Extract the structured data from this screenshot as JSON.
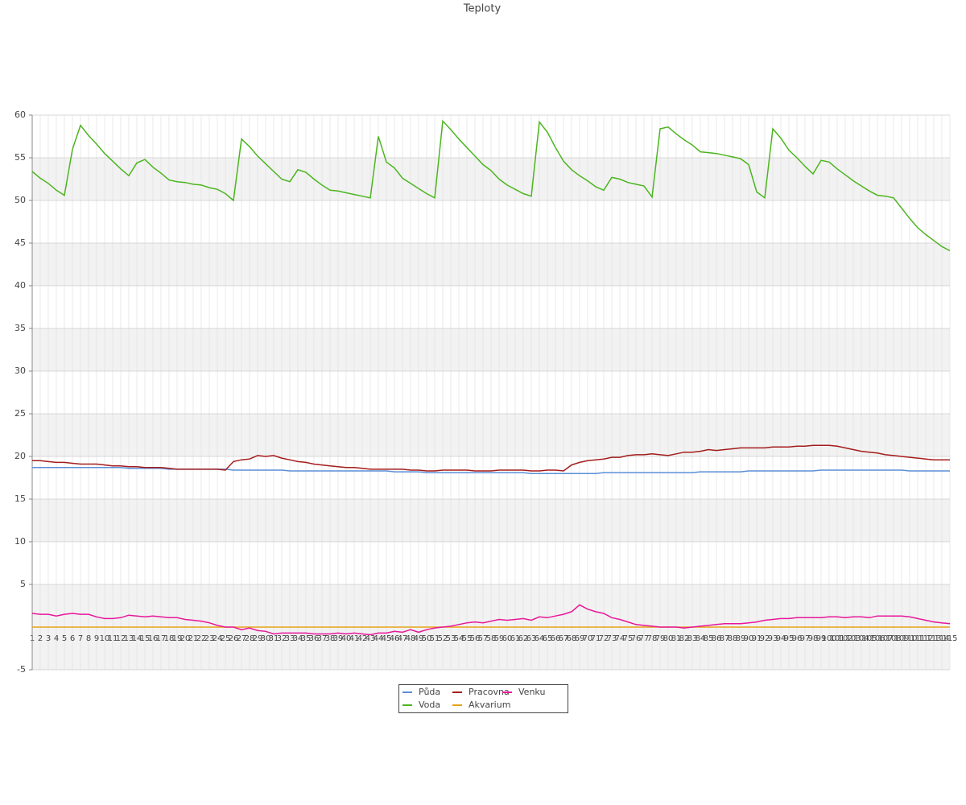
{
  "chart_data": {
    "type": "line",
    "title": "Teploty",
    "x": [
      1,
      2,
      3,
      4,
      5,
      6,
      7,
      8,
      9,
      10,
      11,
      12,
      13,
      14,
      15,
      16,
      17,
      18,
      19,
      20,
      21,
      22,
      23,
      24,
      25,
      26,
      27,
      28,
      29,
      30,
      31,
      32,
      33,
      34,
      35,
      36,
      37,
      38,
      39,
      40,
      41,
      42,
      43,
      44,
      45,
      46,
      47,
      48,
      49,
      50,
      51,
      52,
      53,
      54,
      55,
      56,
      57,
      58,
      59,
      60,
      61,
      62,
      63,
      64,
      65,
      66,
      67,
      68,
      69,
      70,
      71,
      72,
      73,
      74,
      75,
      76,
      77,
      78,
      79,
      80,
      81,
      82,
      83,
      84,
      85,
      86,
      87,
      88,
      89,
      90,
      91,
      92,
      93,
      94,
      95,
      96,
      97,
      98,
      99,
      100,
      101,
      102,
      103,
      104,
      105,
      106,
      107,
      108,
      109,
      110,
      111,
      112,
      113,
      114,
      115
    ],
    "ylim": [
      -5,
      60
    ],
    "yticks": [
      -5,
      5,
      10,
      15,
      20,
      25,
      30,
      35,
      40,
      45,
      50,
      55,
      60
    ],
    "grid": true,
    "series": [
      {
        "name": "Půda",
        "color": "#5b8fd8",
        "values": [
          18.7,
          18.7,
          18.7,
          18.7,
          18.7,
          18.7,
          18.7,
          18.7,
          18.7,
          18.7,
          18.7,
          18.7,
          18.6,
          18.6,
          18.6,
          18.6,
          18.6,
          18.5,
          18.5,
          18.5,
          18.5,
          18.5,
          18.5,
          18.5,
          18.5,
          18.4,
          18.4,
          18.4,
          18.4,
          18.4,
          18.4,
          18.4,
          18.3,
          18.3,
          18.3,
          18.3,
          18.3,
          18.3,
          18.3,
          18.3,
          18.3,
          18.3,
          18.3,
          18.3,
          18.3,
          18.2,
          18.2,
          18.2,
          18.2,
          18.1,
          18.1,
          18.1,
          18.1,
          18.1,
          18.1,
          18.1,
          18.1,
          18.1,
          18.1,
          18.1,
          18.1,
          18.1,
          18.0,
          18.0,
          18.0,
          18.0,
          18.0,
          18.0,
          18.0,
          18.0,
          18.0,
          18.1,
          18.1,
          18.1,
          18.1,
          18.1,
          18.1,
          18.1,
          18.1,
          18.1,
          18.1,
          18.1,
          18.1,
          18.2,
          18.2,
          18.2,
          18.2,
          18.2,
          18.2,
          18.3,
          18.3,
          18.3,
          18.3,
          18.3,
          18.3,
          18.3,
          18.3,
          18.3,
          18.4,
          18.4,
          18.4,
          18.4,
          18.4,
          18.4,
          18.4,
          18.4,
          18.4,
          18.4,
          18.4,
          18.3,
          18.3,
          18.3,
          18.3,
          18.3,
          18.3
        ]
      },
      {
        "name": "Voda",
        "color": "#4cb51f",
        "values": [
          53.4,
          52.6,
          52.0,
          51.2,
          50.6,
          56.0,
          58.8,
          57.6,
          56.6,
          55.5,
          54.6,
          53.7,
          52.9,
          54.4,
          54.8,
          53.9,
          53.2,
          52.4,
          52.2,
          52.1,
          51.9,
          51.8,
          51.5,
          51.3,
          50.8,
          50.0,
          57.2,
          56.3,
          55.2,
          54.3,
          53.4,
          52.5,
          52.2,
          53.6,
          53.3,
          52.5,
          51.8,
          51.2,
          51.1,
          50.9,
          50.7,
          50.5,
          50.3,
          57.5,
          54.5,
          53.8,
          52.6,
          52.0,
          51.4,
          50.8,
          50.3,
          59.3,
          58.3,
          57.2,
          56.2,
          55.2,
          54.2,
          53.5,
          52.5,
          51.8,
          51.3,
          50.8,
          50.5,
          59.2,
          58.0,
          56.2,
          54.6,
          53.6,
          52.9,
          52.3,
          51.6,
          51.2,
          52.7,
          52.5,
          52.1,
          51.9,
          51.7,
          50.4,
          58.4,
          58.6,
          57.8,
          57.1,
          56.5,
          55.7,
          55.6,
          55.5,
          55.3,
          55.1,
          54.9,
          54.2,
          51.0,
          50.3,
          58.4,
          57.3,
          55.9,
          55.0,
          54.0,
          53.1,
          54.7,
          54.5,
          53.7,
          53.0,
          52.3,
          51.7,
          51.1,
          50.6,
          50.5,
          50.3,
          49.1,
          47.9,
          46.8,
          46.0,
          45.3,
          44.6,
          44.1
        ]
      },
      {
        "name": "Pracovna",
        "color": "#a51c1c",
        "values": [
          19.5,
          19.5,
          19.4,
          19.3,
          19.3,
          19.2,
          19.1,
          19.1,
          19.1,
          19.0,
          18.9,
          18.9,
          18.8,
          18.8,
          18.7,
          18.7,
          18.7,
          18.6,
          18.5,
          18.5,
          18.5,
          18.5,
          18.5,
          18.5,
          18.4,
          19.4,
          19.6,
          19.7,
          20.1,
          20.0,
          20.1,
          19.8,
          19.6,
          19.4,
          19.3,
          19.1,
          19.0,
          18.9,
          18.8,
          18.7,
          18.7,
          18.6,
          18.5,
          18.5,
          18.5,
          18.5,
          18.5,
          18.4,
          18.4,
          18.3,
          18.3,
          18.4,
          18.4,
          18.4,
          18.4,
          18.3,
          18.3,
          18.3,
          18.4,
          18.4,
          18.4,
          18.4,
          18.3,
          18.3,
          18.4,
          18.4,
          18.3,
          19.0,
          19.3,
          19.5,
          19.6,
          19.7,
          19.9,
          19.9,
          20.1,
          20.2,
          20.2,
          20.3,
          20.2,
          20.1,
          20.3,
          20.5,
          20.5,
          20.6,
          20.8,
          20.7,
          20.8,
          20.9,
          21.0,
          21.0,
          21.0,
          21.0,
          21.1,
          21.1,
          21.1,
          21.2,
          21.2,
          21.3,
          21.3,
          21.3,
          21.2,
          21.0,
          20.8,
          20.6,
          20.5,
          20.4,
          20.2,
          20.1,
          20.0,
          19.9,
          19.8,
          19.7,
          19.6,
          19.6,
          19.6
        ]
      },
      {
        "name": "Akvarium",
        "color": "#e8a317",
        "values": [
          0,
          0,
          0,
          0,
          0,
          0,
          0,
          0,
          0,
          0,
          0,
          0,
          0,
          0,
          0,
          0,
          0,
          0,
          0,
          0,
          0,
          0,
          0,
          0,
          0,
          0,
          0,
          0,
          0,
          0,
          0,
          0,
          0,
          0,
          0,
          0,
          0,
          0,
          0,
          0,
          0,
          0,
          0,
          0,
          0,
          0,
          0,
          0,
          0,
          0,
          0,
          0,
          0,
          0,
          0,
          0,
          0,
          0,
          0,
          0,
          0,
          0,
          0,
          0,
          0,
          0,
          0,
          0,
          0,
          0,
          0,
          0,
          0,
          0,
          0,
          0,
          0,
          0,
          0,
          0,
          0,
          0,
          0,
          0,
          0,
          0,
          0,
          0,
          0,
          0,
          0,
          0,
          0,
          0,
          0,
          0,
          0,
          0,
          0,
          0,
          0,
          0,
          0,
          0,
          0,
          0,
          0,
          0,
          0,
          0,
          0,
          0,
          0,
          0,
          0
        ]
      },
      {
        "name": "Venku",
        "color": "#e8179a",
        "values": [
          1.6,
          1.5,
          1.5,
          1.3,
          1.5,
          1.6,
          1.5,
          1.5,
          1.2,
          1.0,
          1.0,
          1.1,
          1.4,
          1.3,
          1.2,
          1.3,
          1.2,
          1.1,
          1.1,
          0.9,
          0.8,
          0.7,
          0.5,
          0.2,
          0.0,
          0.0,
          -0.3,
          -0.1,
          -0.4,
          -0.5,
          -0.8,
          -0.7,
          -0.7,
          -0.7,
          -0.7,
          -0.8,
          -0.8,
          -0.8,
          -0.7,
          -0.8,
          -0.7,
          -0.8,
          -0.9,
          -0.7,
          -0.7,
          -0.5,
          -0.6,
          -0.3,
          -0.6,
          -0.3,
          -0.1,
          0.0,
          0.1,
          0.3,
          0.5,
          0.6,
          0.5,
          0.7,
          0.9,
          0.8,
          0.9,
          1.0,
          0.8,
          1.2,
          1.1,
          1.3,
          1.5,
          1.8,
          2.6,
          2.1,
          1.8,
          1.6,
          1.1,
          0.9,
          0.6,
          0.3,
          0.2,
          0.1,
          0.0,
          0.0,
          0.0,
          -0.1,
          0.0,
          0.1,
          0.2,
          0.3,
          0.4,
          0.4,
          0.4,
          0.5,
          0.6,
          0.8,
          0.9,
          1.0,
          1.0,
          1.1,
          1.1,
          1.1,
          1.1,
          1.2,
          1.2,
          1.1,
          1.2,
          1.2,
          1.1,
          1.3,
          1.3,
          1.3,
          1.3,
          1.2,
          1.0,
          0.8,
          0.6,
          0.5,
          0.4
        ]
      }
    ]
  }
}
